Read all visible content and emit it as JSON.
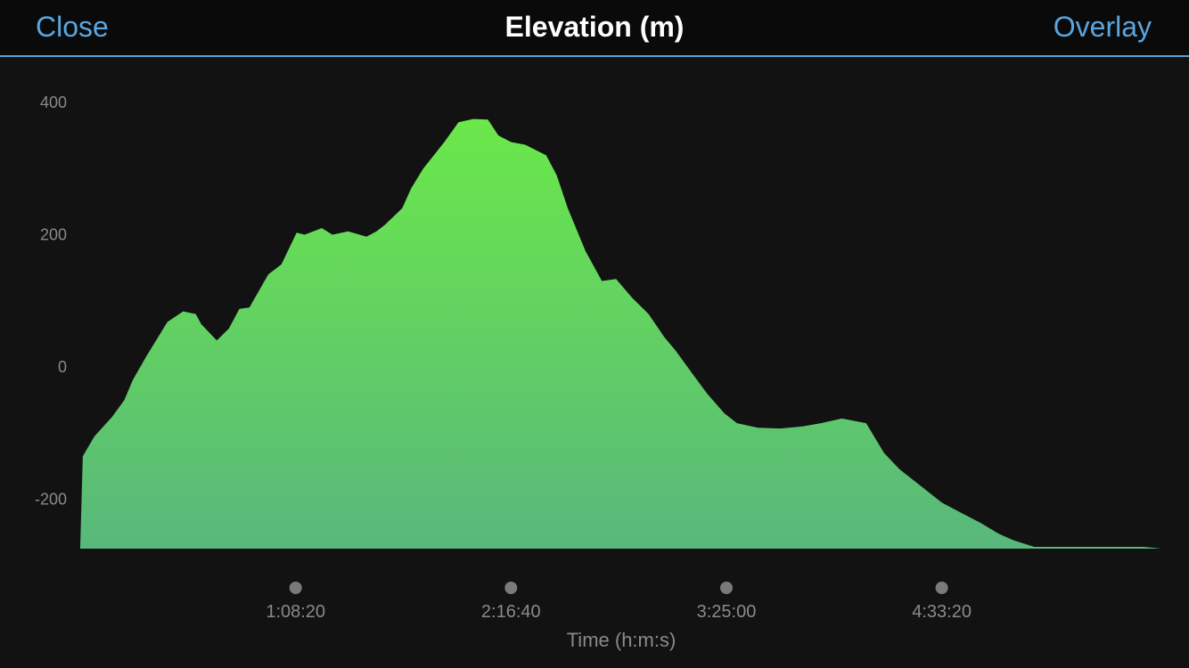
{
  "header": {
    "close_label": "Close",
    "title": "Elevation (m)",
    "overlay_label": "Overlay"
  },
  "colors": {
    "background": "#121212",
    "header_background": "#0a0a0a",
    "accent": "#5aa6e0",
    "fill_top": "#6be84a",
    "fill_bottom": "#58b87c",
    "tick_text": "#8a8a8a",
    "marker": "#7a7a7a"
  },
  "chart_data": {
    "type": "area",
    "title": "Elevation (m)",
    "xlabel": "Time (h:m:s)",
    "ylabel": "",
    "x_tick_labels": [
      "1:08:20",
      "2:16:40",
      "3:25:00",
      "4:33:20"
    ],
    "x_tick_values_s": [
      4100,
      8200,
      12300,
      16400
    ],
    "y_ticks": [
      400,
      200,
      0,
      -200
    ],
    "ylim": [
      -272,
      400
    ],
    "xlim_s": [
      0,
      20580
    ],
    "grid": false,
    "legend": "none",
    "series": [
      {
        "x_s": [
          0,
          50,
          270,
          610,
          840,
          1000,
          1250,
          1660,
          1960,
          2200,
          2300,
          2600,
          2830,
          3030,
          3220,
          3580,
          3830,
          4120,
          4270,
          4600,
          4800,
          5100,
          5450,
          5640,
          5800,
          6130,
          6300,
          6530,
          6930,
          7200,
          7480,
          7760,
          7960,
          8200,
          8470,
          8870,
          9070,
          9280,
          9620,
          9930,
          10200,
          10500,
          10820,
          11120,
          11330,
          11650,
          11930,
          12260,
          12500,
          12900,
          13330,
          13750,
          14100,
          14500,
          14960,
          15300,
          15600,
          15760,
          16000,
          16400,
          16800,
          17120,
          17230,
          17480,
          17760,
          18160,
          18600,
          18860,
          19200,
          19670,
          19920,
          20250,
          20580
        ],
        "y": [
          -272,
          -135,
          -105,
          -75,
          -50,
          -20,
          15,
          68,
          84,
          80,
          65,
          40,
          58,
          88,
          90,
          140,
          155,
          203,
          200,
          210,
          200,
          205,
          197,
          205,
          215,
          240,
          270,
          300,
          340,
          370,
          375,
          374,
          350,
          340,
          336,
          320,
          290,
          240,
          175,
          130,
          133,
          105,
          80,
          45,
          25,
          -10,
          -40,
          -70,
          -85,
          -92,
          -93,
          -90,
          -85,
          -78,
          -85,
          -130,
          -155,
          -165,
          -180,
          -205,
          -222,
          -235,
          -240,
          -252,
          -262,
          -272,
          -272,
          -272,
          -272,
          -272,
          -272,
          -272,
          -276
        ]
      }
    ]
  }
}
